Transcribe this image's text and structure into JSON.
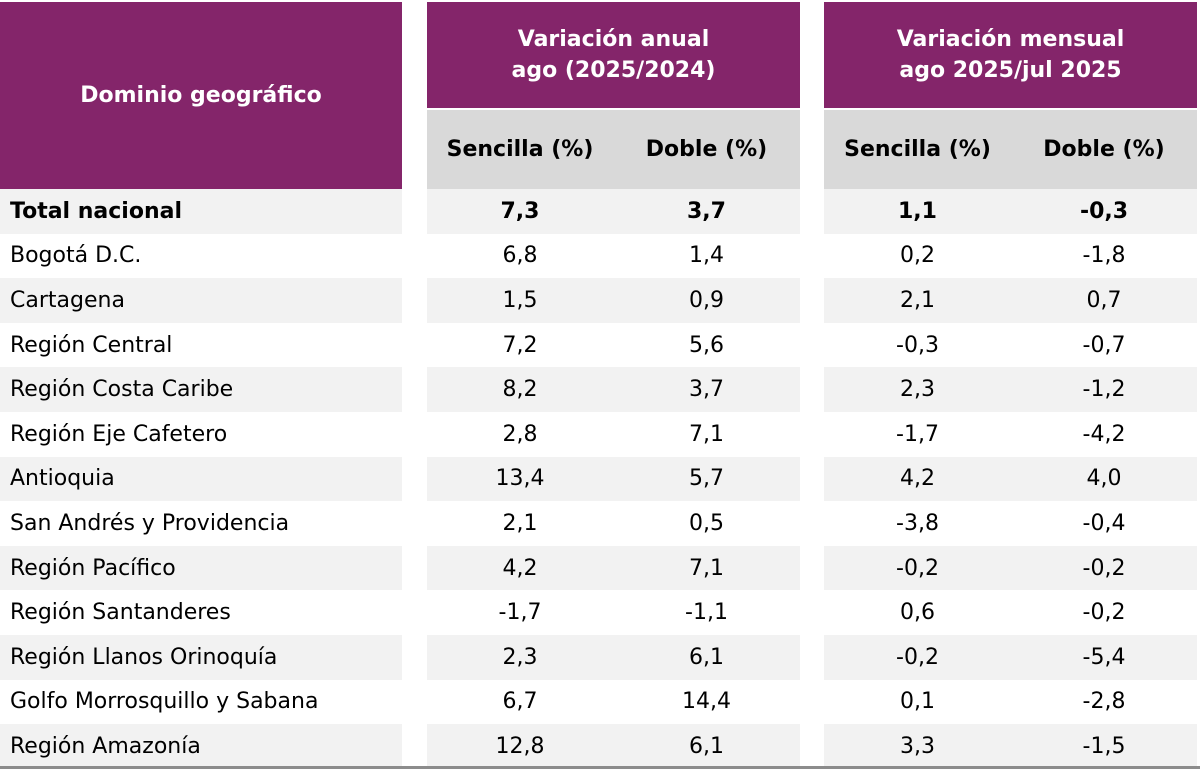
{
  "header": {
    "domain_label": "Dominio geográfico",
    "annual_group": "Variación anual\nago (2025/2024)",
    "monthly_group": "Variación mensual\nago 2025/jul 2025",
    "col_sencilla": "Sencilla (%)",
    "col_doble": "Doble (%)"
  },
  "colors": {
    "header_purple": "#84256a",
    "subheader_gray": "#d9d9d9",
    "stripe_gray": "#f2f2f2"
  },
  "rows": [
    {
      "name": "Total nacional",
      "annual_sencilla": "7,3",
      "annual_doble": "3,7",
      "monthly_sencilla": "1,1",
      "monthly_doble": "-0,3",
      "bold": true
    },
    {
      "name": "Bogotá D.C.",
      "annual_sencilla": "6,8",
      "annual_doble": "1,4",
      "monthly_sencilla": "0,2",
      "monthly_doble": "-1,8"
    },
    {
      "name": "Cartagena",
      "annual_sencilla": "1,5",
      "annual_doble": "0,9",
      "monthly_sencilla": "2,1",
      "monthly_doble": "0,7"
    },
    {
      "name": "Región Central",
      "annual_sencilla": "7,2",
      "annual_doble": "5,6",
      "monthly_sencilla": "-0,3",
      "monthly_doble": "-0,7"
    },
    {
      "name": "Región Costa Caribe",
      "annual_sencilla": "8,2",
      "annual_doble": "3,7",
      "monthly_sencilla": "2,3",
      "monthly_doble": "-1,2"
    },
    {
      "name": "Región Eje Cafetero",
      "annual_sencilla": "2,8",
      "annual_doble": "7,1",
      "monthly_sencilla": "-1,7",
      "monthly_doble": "-4,2"
    },
    {
      "name": "Antioquia",
      "annual_sencilla": "13,4",
      "annual_doble": "5,7",
      "monthly_sencilla": "4,2",
      "monthly_doble": "4,0"
    },
    {
      "name": "San Andrés y Providencia",
      "annual_sencilla": "2,1",
      "annual_doble": "0,5",
      "monthly_sencilla": "-3,8",
      "monthly_doble": "-0,4"
    },
    {
      "name": "Región Pacífico",
      "annual_sencilla": "4,2",
      "annual_doble": "7,1",
      "monthly_sencilla": "-0,2",
      "monthly_doble": "-0,2"
    },
    {
      "name": "Región Santanderes",
      "annual_sencilla": "-1,7",
      "annual_doble": "-1,1",
      "monthly_sencilla": "0,6",
      "monthly_doble": "-0,2"
    },
    {
      "name": "Región Llanos Orinoquía",
      "annual_sencilla": "2,3",
      "annual_doble": "6,1",
      "monthly_sencilla": "-0,2",
      "monthly_doble": "-5,4"
    },
    {
      "name": "Golfo Morrosquillo y Sabana",
      "annual_sencilla": "6,7",
      "annual_doble": "14,4",
      "monthly_sencilla": "0,1",
      "monthly_doble": "-2,8"
    },
    {
      "name": "Región Amazonía",
      "annual_sencilla": "12,8",
      "annual_doble": "6,1",
      "monthly_sencilla": "3,3",
      "monthly_doble": "-1,5"
    }
  ]
}
